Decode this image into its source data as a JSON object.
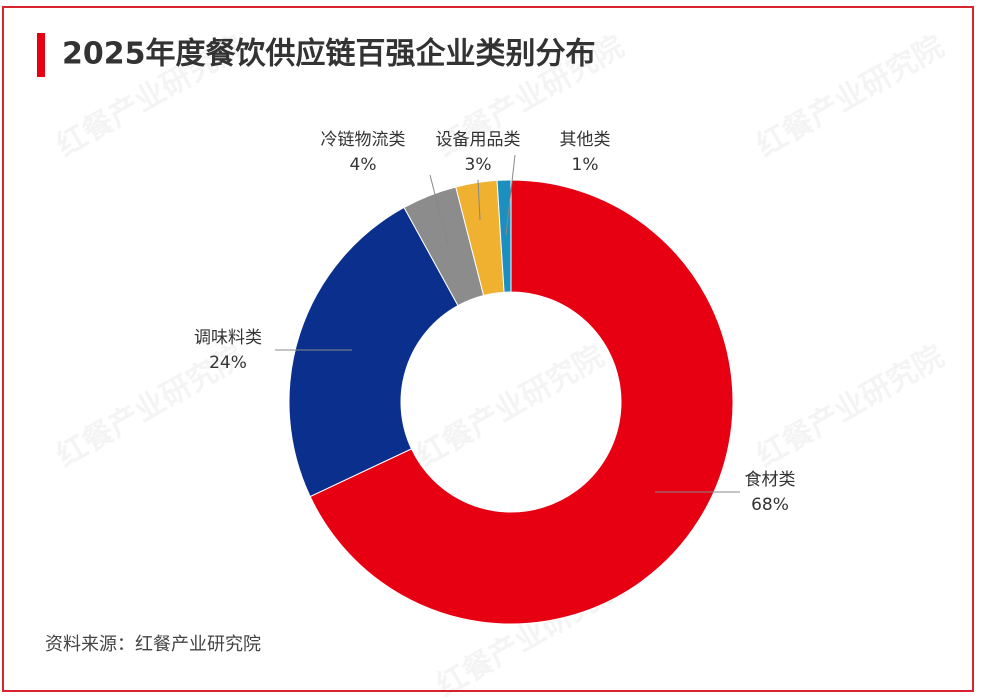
{
  "chart_data": {
    "type": "donut",
    "title": "2025年度餐饮供应链百强企业类别分布",
    "source": "资料来源：红餐产业研究院",
    "watermark": "红餐产业研究院",
    "categories": [
      "食材类",
      "调味料类",
      "冷链物流类",
      "设备用品类",
      "其他类"
    ],
    "values": [
      68,
      24,
      4,
      3,
      1
    ],
    "value_labels": [
      "68%",
      "24%",
      "4%",
      "3%",
      "1%"
    ],
    "colors": [
      "#e60012",
      "#0a2f8c",
      "#8c8c8c",
      "#f0b030",
      "#1a8fc0"
    ]
  }
}
